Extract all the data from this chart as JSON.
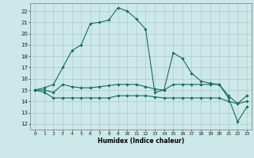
{
  "title": "",
  "xlabel": "Humidex (Indice chaleur)",
  "ylabel": "",
  "bg_color": "#cce8e8",
  "grid_color": "#aacccc",
  "line_color": "#1a6b5a",
  "xlim": [
    -0.5,
    23.5
  ],
  "ylim": [
    11.5,
    22.7
  ],
  "yticks": [
    12,
    13,
    14,
    15,
    16,
    17,
    18,
    19,
    20,
    21,
    22
  ],
  "xticks": [
    0,
    1,
    2,
    3,
    4,
    5,
    6,
    7,
    8,
    9,
    10,
    11,
    12,
    13,
    14,
    15,
    16,
    17,
    18,
    19,
    20,
    21,
    22,
    23
  ],
  "series": [
    {
      "x": [
        0,
        1,
        2,
        3,
        4,
        5,
        6,
        7,
        8,
        9,
        10,
        11,
        12,
        13,
        14,
        15,
        16,
        17,
        18,
        19,
        20,
        21,
        22,
        23
      ],
      "y": [
        15.0,
        15.2,
        15.5,
        17.0,
        18.5,
        19.0,
        20.9,
        21.0,
        21.2,
        22.3,
        22.0,
        21.3,
        20.4,
        14.8,
        15.0,
        18.3,
        17.8,
        16.5,
        15.8,
        15.6,
        15.5,
        14.3,
        12.2,
        13.5
      ]
    },
    {
      "x": [
        0,
        1,
        2,
        3,
        4,
        5,
        6,
        7,
        8,
        9,
        10,
        11,
        12,
        13,
        14,
        15,
        16,
        17,
        18,
        19,
        20,
        21,
        22,
        23
      ],
      "y": [
        15.0,
        15.0,
        14.8,
        15.5,
        15.3,
        15.2,
        15.2,
        15.3,
        15.4,
        15.5,
        15.5,
        15.5,
        15.3,
        15.1,
        15.0,
        15.5,
        15.5,
        15.5,
        15.5,
        15.5,
        15.5,
        14.5,
        13.8,
        14.5
      ]
    },
    {
      "x": [
        0,
        1,
        2,
        3,
        4,
        5,
        6,
        7,
        8,
        9,
        10,
        11,
        12,
        13,
        14,
        15,
        16,
        17,
        18,
        19,
        20,
        21,
        22,
        23
      ],
      "y": [
        15.0,
        14.8,
        14.3,
        14.3,
        14.3,
        14.3,
        14.3,
        14.3,
        14.3,
        14.5,
        14.5,
        14.5,
        14.5,
        14.4,
        14.3,
        14.3,
        14.3,
        14.3,
        14.3,
        14.3,
        14.3,
        14.0,
        13.8,
        14.0
      ]
    }
  ]
}
